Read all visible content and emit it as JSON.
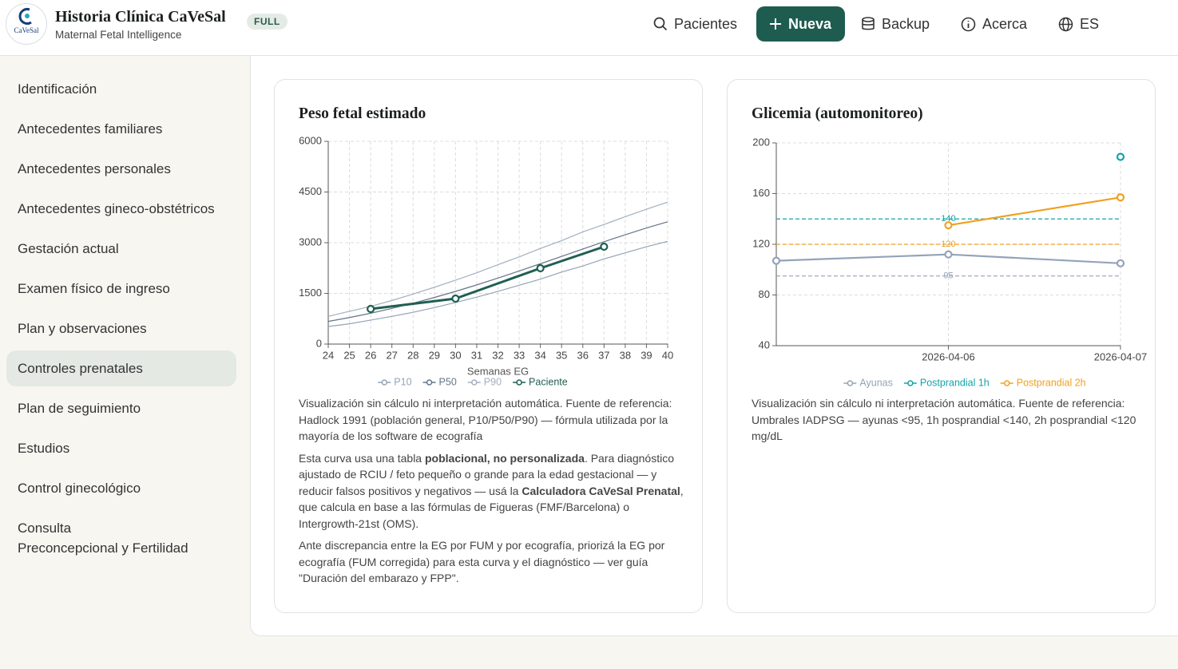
{
  "header": {
    "title": "Historia Clínica CaVeSal",
    "subtitle": "Maternal Fetal Intelligence",
    "badge": "FULL",
    "logo": "CaVeSal",
    "nav": [
      "Pacientes",
      "Nueva",
      "Backup",
      "Acerca",
      "ES"
    ]
  },
  "sidebar": {
    "items": [
      "Identificación",
      "Antecedentes familiares",
      "Antecedentes personales",
      "Antecedentes gineco-obstétricos",
      "Gestación actual",
      "Examen físico de ingreso",
      "Plan y observaciones",
      "Controles prenatales",
      "Plan de seguimiento",
      "Estudios",
      "Control ginecológico",
      "Consulta\nPreconcepcional y Fertilidad"
    ]
  },
  "chart_data": [
    {
      "type": "line",
      "title": "Peso fetal estimado",
      "xlabel": "Semanas EG",
      "x": [
        24,
        25,
        26,
        27,
        28,
        29,
        30,
        31,
        32,
        33,
        34,
        35,
        36,
        37,
        38,
        39,
        40
      ],
      "xlim": [
        24,
        40
      ],
      "xticks": [
        24,
        25,
        26,
        27,
        28,
        29,
        30,
        31,
        32,
        33,
        34,
        35,
        36,
        37,
        38,
        39,
        40
      ],
      "ylim": [
        0,
        6000
      ],
      "yticks": [
        0,
        1500,
        3000,
        4500,
        6000
      ],
      "grid": true,
      "series": [
        {
          "name": "P10",
          "color": "#94a3b8",
          "markers": false,
          "values": [
            520,
            600,
            710,
            820,
            940,
            1080,
            1230,
            1390,
            1560,
            1740,
            1920,
            2130,
            2310,
            2520,
            2700,
            2880,
            3040
          ]
        },
        {
          "name": "P50",
          "color": "#64748b",
          "markers": false,
          "values": [
            670,
            785,
            913,
            1055,
            1210,
            1379,
            1559,
            1751,
            1953,
            2162,
            2377,
            2595,
            2813,
            3028,
            3236,
            3435,
            3619
          ]
        },
        {
          "name": "P90",
          "color": "#a3afc0",
          "markers": false,
          "values": [
            820,
            970,
            1115,
            1290,
            1480,
            1680,
            1890,
            2110,
            2350,
            2580,
            2830,
            3060,
            3320,
            3540,
            3770,
            3990,
            4200
          ]
        },
        {
          "name": "Paciente",
          "color": "#1f5f52",
          "markers": true,
          "x": [
            26,
            30,
            34,
            37
          ],
          "values": [
            1039,
            1346,
            2244,
            2882
          ]
        }
      ]
    },
    {
      "type": "line",
      "title": "Glicemia (automonitoreo)",
      "categories": [
        null,
        "2026-04-06",
        "2026-04-07"
      ],
      "ylim": [
        40,
        200
      ],
      "yticks": [
        40,
        80,
        120,
        160,
        200
      ],
      "grid": true,
      "thresholds": [
        {
          "value": 140,
          "color": "#14a3a8"
        },
        {
          "value": 120,
          "color": "#f0a020"
        },
        {
          "value": 95,
          "color": "#94a3b8"
        }
      ],
      "series": [
        {
          "name": "Ayunas",
          "color": "#94a3b8",
          "markers": true,
          "values": [
            107,
            112,
            105
          ]
        },
        {
          "name": "Postprandial 1h",
          "color": "#14a3a8",
          "markers": true,
          "values": [
            null,
            null,
            189
          ]
        },
        {
          "name": "Postprandial 2h",
          "color": "#f0a020",
          "markers": true,
          "values": [
            null,
            135,
            157
          ]
        }
      ]
    }
  ],
  "notes": [
    {
      "paragraphs": [
        [
          "Visualización sin cálculo ni interpretación automática. Fuente de referencia: Hadlock 1991 (población general, P10/P50/P90) — fórmula utilizada por la mayoría de los software de ecografía"
        ],
        [
          "Esta curva usa una tabla ",
          "poblacional, no personalizada",
          ". Para diagnóstico ajustado de RCIU / feto pequeño o grande para la edad gestacional — y reducir falsos positivos y negativos — usá la ",
          "Calculadora CaVeSal Prenatal",
          ", que calcula en base a las fórmulas de Figueras (FMF/Barcelona) o Intergrowth-21st (OMS)."
        ],
        [
          "Ante discrepancia entre la EG por FUM y por ecografía, priorizá la EG por ecografía (FUM corregida) para esta curva y el diagnóstico — ver guía \"Duración del embarazo y FPP\"."
        ]
      ]
    },
    {
      "paragraphs": [
        [
          "Visualización sin cálculo ni interpretación automática. Fuente de referencia: Umbrales IADPSG — ayunas <95, 1h posprandial <140, 2h posprandial <120 mg/dL"
        ]
      ]
    }
  ]
}
